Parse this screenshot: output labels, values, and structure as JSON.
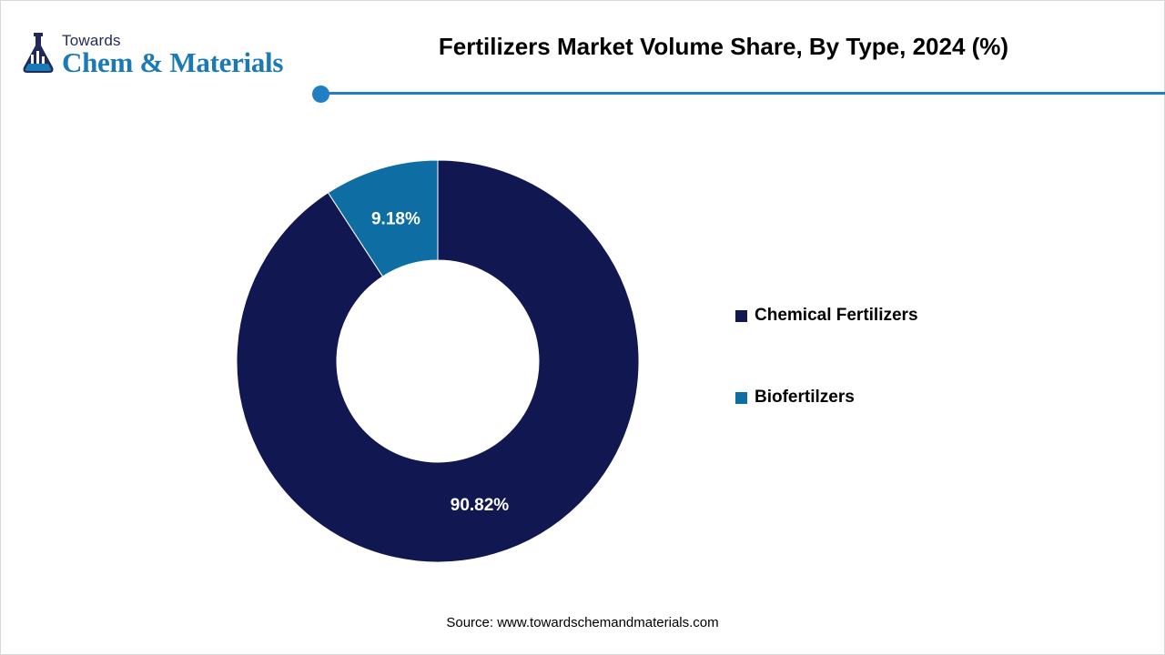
{
  "logo": {
    "line1": "Towards",
    "line2": "Chem & Materials",
    "icon": "flask-lab-icon"
  },
  "colors": {
    "accent": "#1f7fc2",
    "chemical": "#111851",
    "bio": "#0e6da3"
  },
  "chart_data": {
    "type": "pie",
    "donut": true,
    "title": "Fertilizers Market Volume Share, By Type, 2024 (%)",
    "categories": [
      "Chemical Fertilizers",
      "Biofertilzers"
    ],
    "values": [
      90.82,
      9.18
    ],
    "data_labels": [
      "90.82%",
      "9.18%"
    ],
    "series_colors": [
      "#111851",
      "#0e6da3"
    ],
    "legend_position": "right"
  },
  "source": "Source: www.towardschemandmaterials.com"
}
